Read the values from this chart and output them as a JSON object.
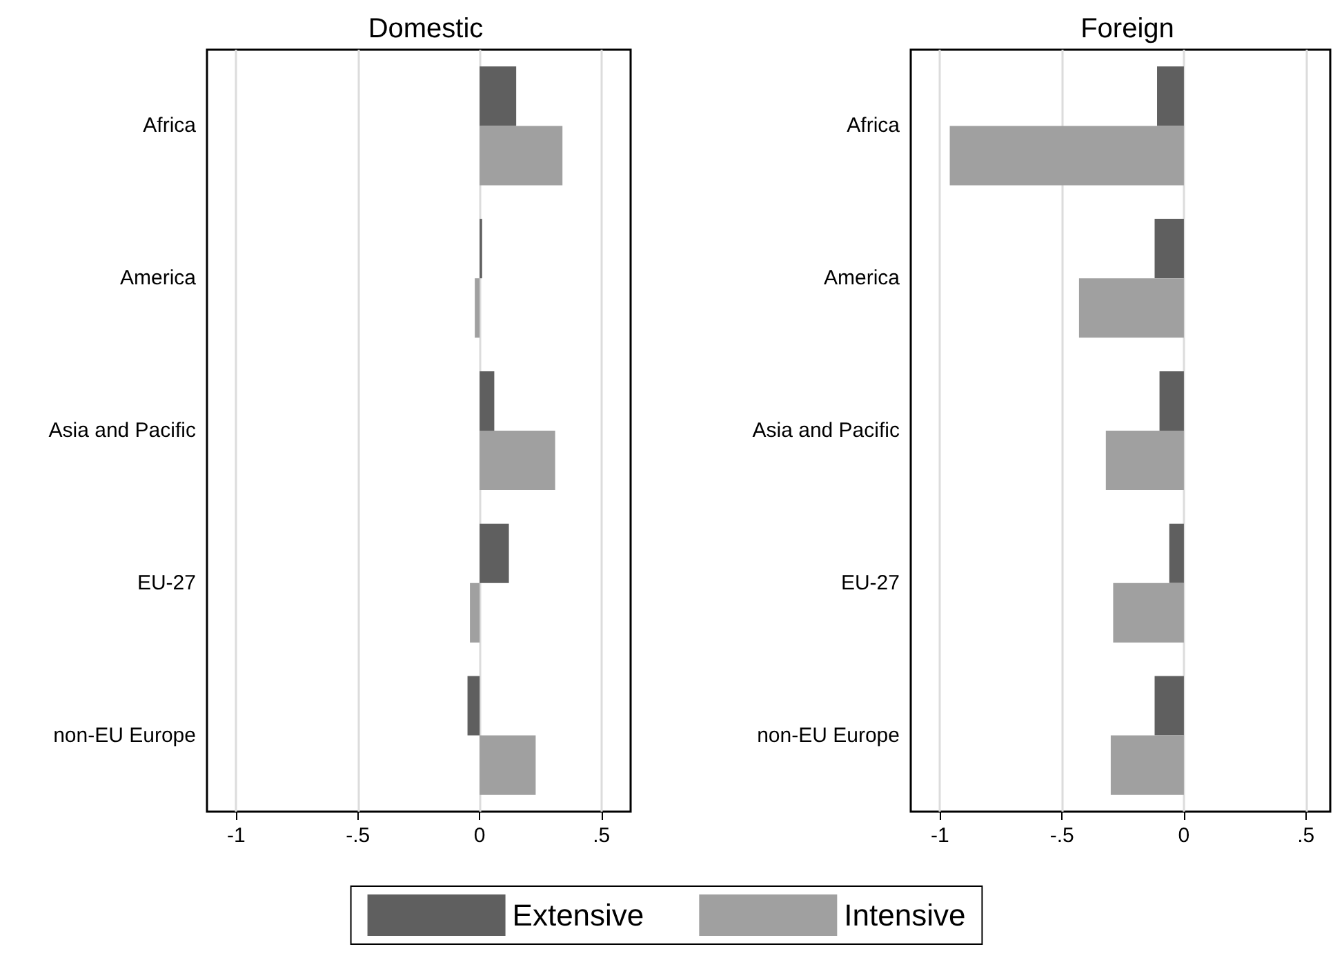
{
  "chart_data": [
    {
      "type": "bar",
      "orientation": "horizontal",
      "title": "Domestic",
      "categories": [
        "Africa",
        "America",
        "Asia and Pacific",
        "EU-27",
        "non-EU Europe"
      ],
      "series": [
        {
          "name": "Extensive",
          "color": "#5f5f5f",
          "values": [
            0.15,
            0.01,
            0.06,
            0.12,
            -0.05
          ]
        },
        {
          "name": "Intensive",
          "color": "#a0a0a0",
          "values": [
            0.34,
            -0.02,
            0.31,
            -0.04,
            0.23
          ]
        }
      ],
      "xlim": [
        -1.12,
        0.62
      ],
      "xticks": [
        {
          "value": -1,
          "label": "-1"
        },
        {
          "value": -0.5,
          "label": "-.5"
        },
        {
          "value": 0,
          "label": "0"
        },
        {
          "value": 0.5,
          "label": ".5"
        }
      ],
      "grid": "x",
      "legend": "bottom"
    },
    {
      "type": "bar",
      "orientation": "horizontal",
      "title": "Foreign",
      "categories": [
        "Africa",
        "America",
        "Asia and Pacific",
        "EU-27",
        "non-EU Europe"
      ],
      "series": [
        {
          "color": "#5f5f5f",
          "values": [
            -0.11,
            -0.12,
            -0.1,
            -0.06,
            -0.12
          ]
        },
        {
          "color": "#a0a0a0",
          "values": [
            -0.96,
            -0.43,
            -0.32,
            -0.29,
            -0.3
          ]
        }
      ],
      "xlim": [
        -1.12,
        0.6
      ],
      "xticks": [
        {
          "value": -1,
          "label": "-1"
        },
        {
          "value": -0.5,
          "label": "-.5"
        },
        {
          "value": 0,
          "label": "0"
        },
        {
          "value": 0.5,
          "label": ".5"
        }
      ],
      "grid": "x"
    }
  ]
}
